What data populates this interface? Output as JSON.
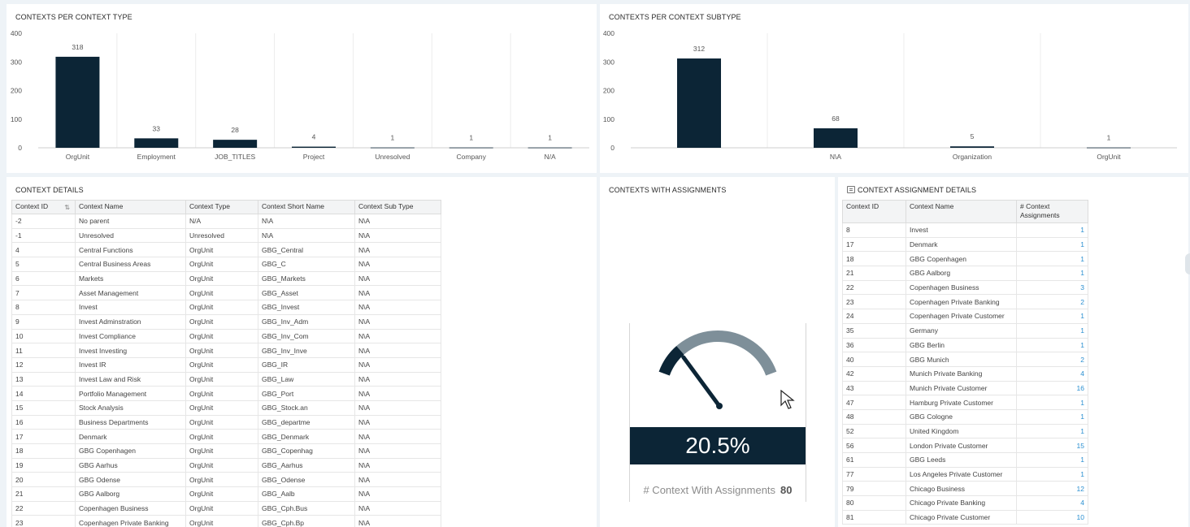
{
  "colors": {
    "bar": "#0c2536",
    "gauge_fill": "#0c2536",
    "gauge_track": "#7e8f99",
    "link": "#2a8fd1"
  },
  "chart_type": {
    "title": "CONTEXTS PER CONTEXT TYPE",
    "chart_data": {
      "type": "bar",
      "categories": [
        "OrgUnit",
        "Employment",
        "JOB_TITLES",
        "Project",
        "Unresolved",
        "Company",
        "N/A"
      ],
      "values": [
        318,
        33,
        28,
        4,
        1,
        1,
        1
      ],
      "ylim": [
        0,
        400
      ],
      "yticks": [
        0,
        100,
        200,
        300,
        400
      ],
      "grid": true
    }
  },
  "chart_subtype": {
    "title": "CONTEXTS PER CONTEXT SUBTYPE",
    "chart_data": {
      "type": "bar",
      "categories": [
        "",
        "N\\A",
        "Organization",
        "OrgUnit"
      ],
      "values": [
        312,
        68,
        5,
        1
      ],
      "ylim": [
        0,
        400
      ],
      "yticks": [
        0,
        100,
        200,
        300,
        400
      ],
      "grid": true
    }
  },
  "details": {
    "title": "CONTEXT DETAILS",
    "sort_icon": "sort-filter-icon",
    "columns": [
      "Context ID",
      "Context Name",
      "Context Type",
      "Context Short Name",
      "Context Sub Type"
    ],
    "rows": [
      [
        "-2",
        "No parent",
        "N/A",
        "N\\A",
        "N\\A"
      ],
      [
        "-1",
        "Unresolved",
        "Unresolved",
        "N\\A",
        "N\\A"
      ],
      [
        "4",
        "Central Functions",
        "OrgUnit",
        "GBG_Central",
        "N\\A"
      ],
      [
        "5",
        "Central Business Areas",
        "OrgUnit",
        "GBG_C",
        "N\\A"
      ],
      [
        "6",
        "Markets",
        "OrgUnit",
        "GBG_Markets",
        "N\\A"
      ],
      [
        "7",
        "Asset Management",
        "OrgUnit",
        "GBG_Asset",
        "N\\A"
      ],
      [
        "8",
        "Invest",
        "OrgUnit",
        "GBG_Invest",
        "N\\A"
      ],
      [
        "9",
        "Invest Adminstration",
        "OrgUnit",
        "GBG_Inv_Adm",
        "N\\A"
      ],
      [
        "10",
        "Invest Compliance",
        "OrgUnit",
        "GBG_Inv_Com",
        "N\\A"
      ],
      [
        "11",
        "Invest Investing",
        "OrgUnit",
        "GBG_Inv_Inve",
        "N\\A"
      ],
      [
        "12",
        "Invest IR",
        "OrgUnit",
        "GBG_IR",
        "N\\A"
      ],
      [
        "13",
        "Invest Law and Risk",
        "OrgUnit",
        "GBG_Law",
        "N\\A"
      ],
      [
        "14",
        "Portfolio Management",
        "OrgUnit",
        "GBG_Port",
        "N\\A"
      ],
      [
        "15",
        "Stock Analysis",
        "OrgUnit",
        "GBG_Stock.an",
        "N\\A"
      ],
      [
        "16",
        "Business Departments",
        "OrgUnit",
        "GBG_departme",
        "N\\A"
      ],
      [
        "17",
        "Denmark",
        "OrgUnit",
        "GBG_Denmark",
        "N\\A"
      ],
      [
        "18",
        "GBG Copenhagen",
        "OrgUnit",
        "GBG_Copenhag",
        "N\\A"
      ],
      [
        "19",
        "GBG Aarhus",
        "OrgUnit",
        "GBG_Aarhus",
        "N\\A"
      ],
      [
        "20",
        "GBG Odense",
        "OrgUnit",
        "GBG_Odense",
        "N\\A"
      ],
      [
        "21",
        "GBG Aalborg",
        "OrgUnit",
        "GBG_Aalb",
        "N\\A"
      ],
      [
        "22",
        "Copenhagen Business",
        "OrgUnit",
        "GBG_Cph.Bus",
        "N\\A"
      ],
      [
        "23",
        "Copenhagen Private Banking",
        "OrgUnit",
        "GBG_Cph.Bp",
        "N\\A"
      ]
    ]
  },
  "gauge": {
    "title": "CONTEXTS WITH ASSIGNMENTS",
    "value_text": "20.5%",
    "fraction": 0.205,
    "label": "# Context With Assignments",
    "count": "80"
  },
  "assign": {
    "title": "CONTEXT ASSIGNMENT DETAILS",
    "title_icon": "table-icon",
    "columns": [
      "Context ID",
      "Context Name",
      "# Context Assignments"
    ],
    "rows": [
      [
        "8",
        "Invest",
        "1"
      ],
      [
        "17",
        "Denmark",
        "1"
      ],
      [
        "18",
        "GBG Copenhagen",
        "1"
      ],
      [
        "21",
        "GBG Aalborg",
        "1"
      ],
      [
        "22",
        "Copenhagen Business",
        "3"
      ],
      [
        "23",
        "Copenhagen Private Banking",
        "2"
      ],
      [
        "24",
        "Copenhagen Private Customer",
        "1"
      ],
      [
        "35",
        "Germany",
        "1"
      ],
      [
        "36",
        "GBG Berlin",
        "1"
      ],
      [
        "40",
        "GBG Munich",
        "2"
      ],
      [
        "42",
        "Munich Private Banking",
        "4"
      ],
      [
        "43",
        "Munich Private Customer",
        "16"
      ],
      [
        "47",
        "Hamburg Private Customer",
        "1"
      ],
      [
        "48",
        "GBG Cologne",
        "1"
      ],
      [
        "52",
        "United Kingdom",
        "1"
      ],
      [
        "56",
        "London Private Customer",
        "15"
      ],
      [
        "61",
        "GBG Leeds",
        "1"
      ],
      [
        "77",
        "Los Angeles Private Customer",
        "1"
      ],
      [
        "79",
        "Chicago Business",
        "12"
      ],
      [
        "80",
        "Chicago Private Banking",
        "4"
      ],
      [
        "81",
        "Chicago Private Customer",
        "10"
      ]
    ]
  }
}
